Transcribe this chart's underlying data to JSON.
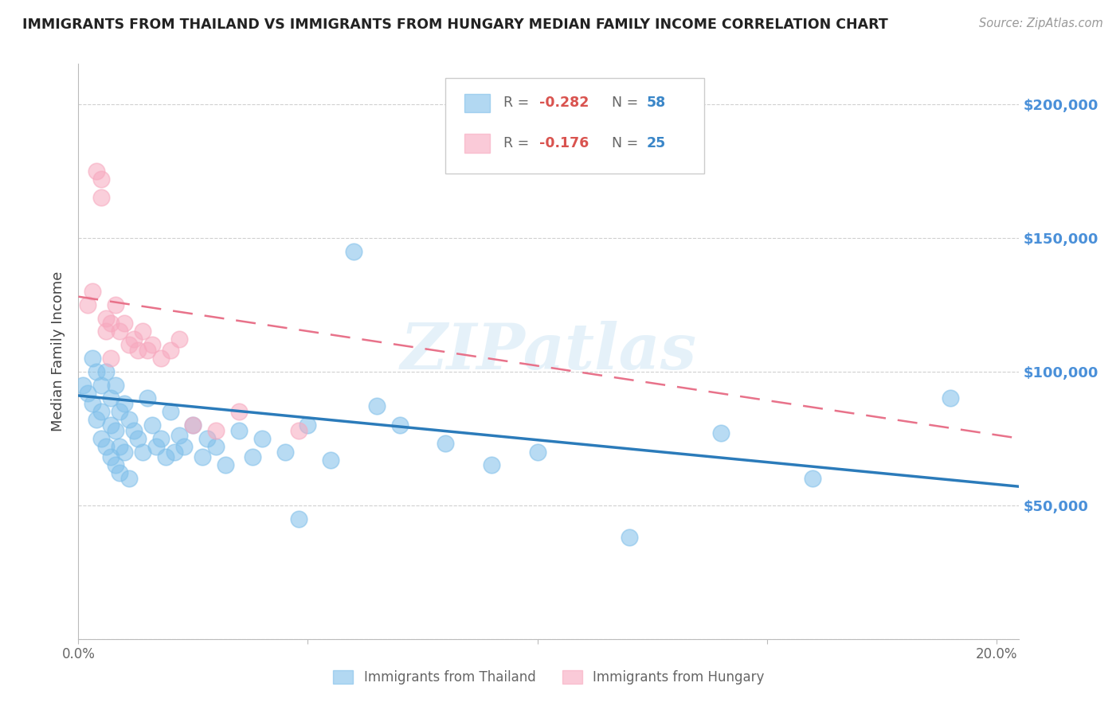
{
  "title": "IMMIGRANTS FROM THAILAND VS IMMIGRANTS FROM HUNGARY MEDIAN FAMILY INCOME CORRELATION CHART",
  "source": "Source: ZipAtlas.com",
  "ylabel": "Median Family Income",
  "xlim": [
    0.0,
    0.205
  ],
  "ylim": [
    0,
    215000
  ],
  "yticks": [
    0,
    50000,
    100000,
    150000,
    200000
  ],
  "ytick_labels": [
    "",
    "$50,000",
    "$100,000",
    "$150,000",
    "$200,000"
  ],
  "xticks": [
    0.0,
    0.05,
    0.1,
    0.15,
    0.2
  ],
  "xtick_labels": [
    "0.0%",
    "",
    "",
    "",
    "20.0%"
  ],
  "background_color": "#ffffff",
  "grid_color": "#d0d0d0",
  "blue_color": "#7fbfea",
  "pink_color": "#f7a8be",
  "blue_line_color": "#2b7bba",
  "pink_line_color": "#e8728a",
  "right_label_color": "#4a90d9",
  "label_thailand": "Immigrants from Thailand",
  "label_hungary": "Immigrants from Hungary",
  "watermark": "ZIPatlas",
  "thailand_x": [
    0.001,
    0.002,
    0.003,
    0.003,
    0.004,
    0.004,
    0.005,
    0.005,
    0.005,
    0.006,
    0.006,
    0.007,
    0.007,
    0.007,
    0.008,
    0.008,
    0.008,
    0.009,
    0.009,
    0.009,
    0.01,
    0.01,
    0.011,
    0.011,
    0.012,
    0.013,
    0.014,
    0.015,
    0.016,
    0.017,
    0.018,
    0.019,
    0.02,
    0.021,
    0.022,
    0.023,
    0.025,
    0.027,
    0.028,
    0.03,
    0.032,
    0.035,
    0.038,
    0.04,
    0.045,
    0.048,
    0.05,
    0.055,
    0.06,
    0.065,
    0.07,
    0.08,
    0.09,
    0.1,
    0.12,
    0.14,
    0.16,
    0.19
  ],
  "thailand_y": [
    95000,
    92000,
    105000,
    88000,
    100000,
    82000,
    95000,
    85000,
    75000,
    100000,
    72000,
    90000,
    80000,
    68000,
    95000,
    78000,
    65000,
    85000,
    72000,
    62000,
    88000,
    70000,
    82000,
    60000,
    78000,
    75000,
    70000,
    90000,
    80000,
    72000,
    75000,
    68000,
    85000,
    70000,
    76000,
    72000,
    80000,
    68000,
    75000,
    72000,
    65000,
    78000,
    68000,
    75000,
    70000,
    45000,
    80000,
    67000,
    145000,
    87000,
    80000,
    73000,
    65000,
    70000,
    38000,
    77000,
    60000,
    90000
  ],
  "hungary_x": [
    0.002,
    0.003,
    0.004,
    0.005,
    0.005,
    0.006,
    0.006,
    0.007,
    0.007,
    0.008,
    0.009,
    0.01,
    0.011,
    0.012,
    0.013,
    0.014,
    0.015,
    0.016,
    0.018,
    0.02,
    0.022,
    0.025,
    0.03,
    0.035,
    0.048
  ],
  "hungary_y": [
    125000,
    130000,
    175000,
    165000,
    172000,
    120000,
    115000,
    118000,
    105000,
    125000,
    115000,
    118000,
    110000,
    112000,
    108000,
    115000,
    108000,
    110000,
    105000,
    108000,
    112000,
    80000,
    78000,
    85000,
    78000
  ],
  "blue_trendline_x": [
    0.0,
    0.205
  ],
  "blue_trendline_y": [
    91000,
    57000
  ],
  "pink_trendline_x": [
    0.0,
    0.205
  ],
  "pink_trendline_y": [
    128000,
    75000
  ]
}
